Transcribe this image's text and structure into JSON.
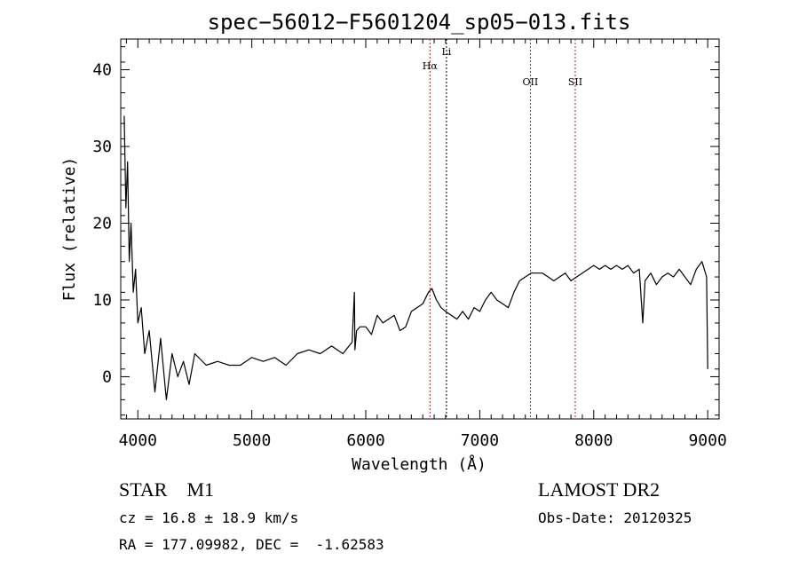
{
  "chart_data": {
    "type": "line",
    "title": "spec−56012−F5601204_sp05−013.fits",
    "xlabel": "Wavelength (Å)",
    "ylabel": "Flux (relative)",
    "xlim": [
      3850,
      9100
    ],
    "ylim": [
      -5.5,
      44
    ],
    "x_ticks": [
      4000,
      5000,
      6000,
      7000,
      8000,
      9000
    ],
    "y_ticks": [
      0,
      10,
      20,
      30,
      40
    ],
    "grid": false,
    "series": [
      {
        "color": "#000000",
        "x": [
          3880,
          3895,
          3910,
          3925,
          3940,
          3960,
          3980,
          4000,
          4030,
          4060,
          4100,
          4150,
          4200,
          4250,
          4300,
          4350,
          4400,
          4450,
          4500,
          4600,
          4700,
          4800,
          4900,
          5000,
          5100,
          5200,
          5300,
          5400,
          5500,
          5600,
          5700,
          5800,
          5880,
          5900,
          5905,
          5920,
          5950,
          6000,
          6050,
          6100,
          6150,
          6200,
          6250,
          6300,
          6350,
          6400,
          6450,
          6500,
          6550,
          6580,
          6620,
          6660,
          6700,
          6750,
          6800,
          6850,
          6900,
          6950,
          7000,
          7050,
          7100,
          7150,
          7200,
          7250,
          7300,
          7350,
          7400,
          7450,
          7500,
          7550,
          7600,
          7650,
          7700,
          7750,
          7800,
          7850,
          7900,
          7950,
          8000,
          8050,
          8100,
          8150,
          8200,
          8250,
          8300,
          8350,
          8400,
          8430,
          8450,
          8500,
          8550,
          8600,
          8650,
          8700,
          8750,
          8800,
          8850,
          8900,
          8950,
          8970,
          8990,
          9000
        ],
        "y": [
          34,
          22,
          28,
          15,
          20,
          11,
          14,
          7,
          9,
          3,
          6,
          -2,
          5,
          -3,
          3,
          0,
          2,
          -1,
          3,
          1.5,
          2,
          1.5,
          1.5,
          2.5,
          2,
          2.5,
          1.5,
          3,
          3.5,
          3,
          4,
          3,
          4.5,
          11,
          3.5,
          6,
          6.5,
          6.5,
          5.5,
          8,
          7,
          7.5,
          8,
          6,
          6.5,
          8.5,
          9,
          9.5,
          11,
          11.5,
          10,
          9,
          8.5,
          8,
          7.5,
          8.5,
          7.5,
          9,
          8.5,
          10,
          11,
          10,
          9.5,
          9,
          11,
          12.5,
          13,
          13.5,
          13.5,
          13.5,
          13,
          12.5,
          13,
          13.5,
          12.5,
          13,
          13.5,
          14,
          14.5,
          14,
          14.5,
          14,
          14.5,
          14,
          14.5,
          13.5,
          14,
          7,
          12.5,
          13.5,
          12,
          13,
          13.5,
          13,
          14,
          13,
          12,
          14,
          15,
          14,
          13,
          1
        ]
      }
    ],
    "lines": [
      {
        "label": "Hα",
        "x": 6563,
        "color": "#b22222",
        "style": "dotted"
      },
      {
        "label": "Li",
        "x": 6708,
        "color": "#000000",
        "style": "dotted"
      },
      {
        "label": "OII",
        "x": 7444,
        "color": "#b22222",
        "style": "dotted"
      },
      {
        "label": "SII",
        "x": 7838,
        "color": "#b22222",
        "style": "dotted"
      }
    ]
  },
  "info": {
    "class_label": "STAR    M1",
    "survey_label": "LAMOST DR2",
    "cz_text": "cz = 16.8 ± 18.9 km/s",
    "obs_date": "Obs-Date: 20120325",
    "coords": "RA = 177.09982, DEC =  -1.62583"
  }
}
